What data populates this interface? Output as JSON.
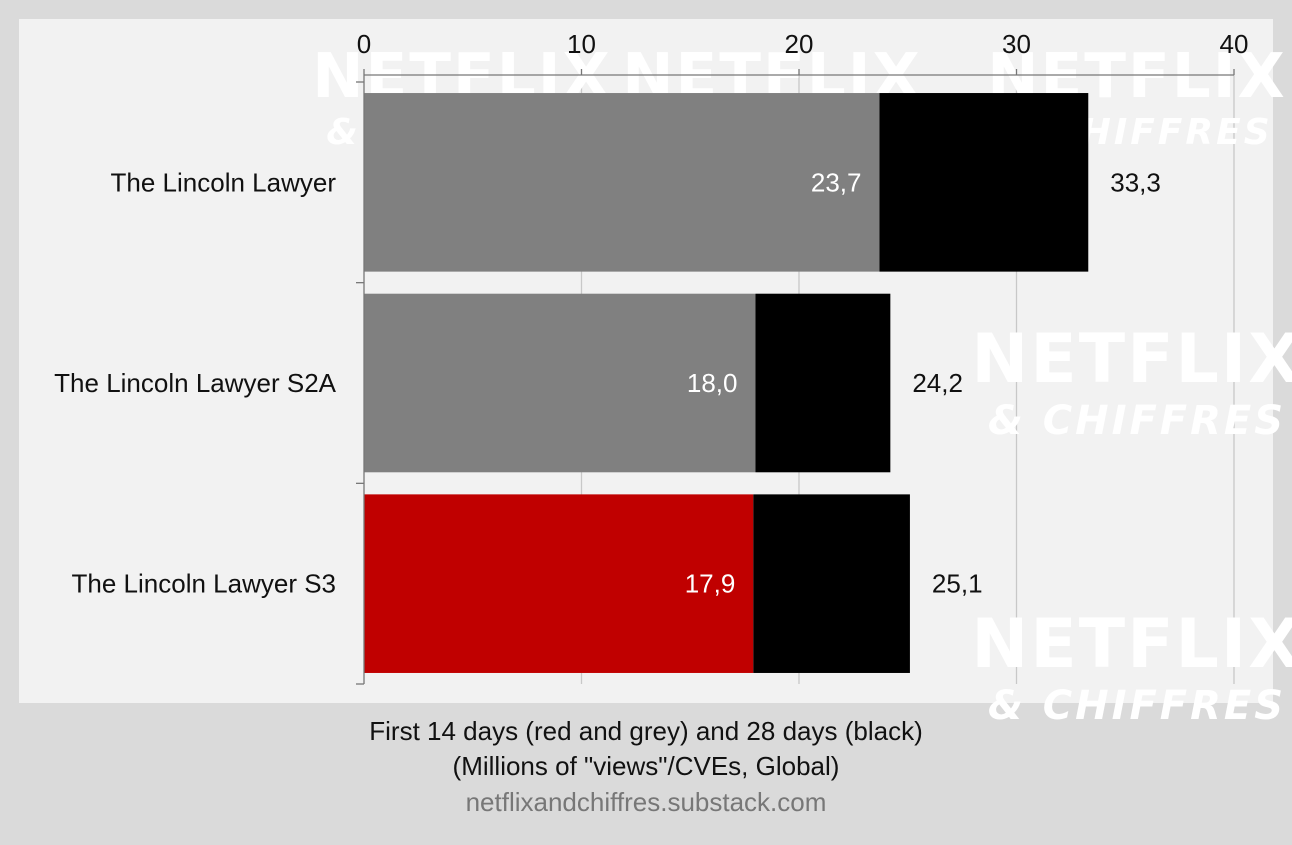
{
  "chart_data": {
    "type": "bar",
    "orientation": "horizontal",
    "stacked_overlay": true,
    "categories": [
      "The Lincoln Lawyer",
      "The Lincoln Lawyer S2A",
      "The Lincoln Lawyer S3"
    ],
    "series": [
      {
        "values": [
          23.7,
          18.0,
          17.9
        ],
        "value_labels": [
          "23,7",
          "18,0",
          "17,9"
        ]
      },
      {
        "values": [
          33.3,
          24.2,
          25.1
        ],
        "value_labels": [
          "33,3",
          "24,2",
          "25,1"
        ]
      }
    ],
    "first_period_colors": [
      "#808080",
      "#808080",
      "#c00000"
    ],
    "second_period_color": "#000000",
    "xlim": [
      0,
      40
    ],
    "xticks": [
      0,
      10,
      20,
      30,
      40
    ],
    "x_axis_position": "top",
    "grid": true,
    "caption_line1": "First 14 days (red and grey) and 28 days (black)",
    "caption_line2": "(Millions of \"views\"/CVEs, Global)",
    "source": "netflixandchiffres.substack.com",
    "watermark_lines": [
      "NETFLIX",
      "& CHIFFRES"
    ]
  }
}
